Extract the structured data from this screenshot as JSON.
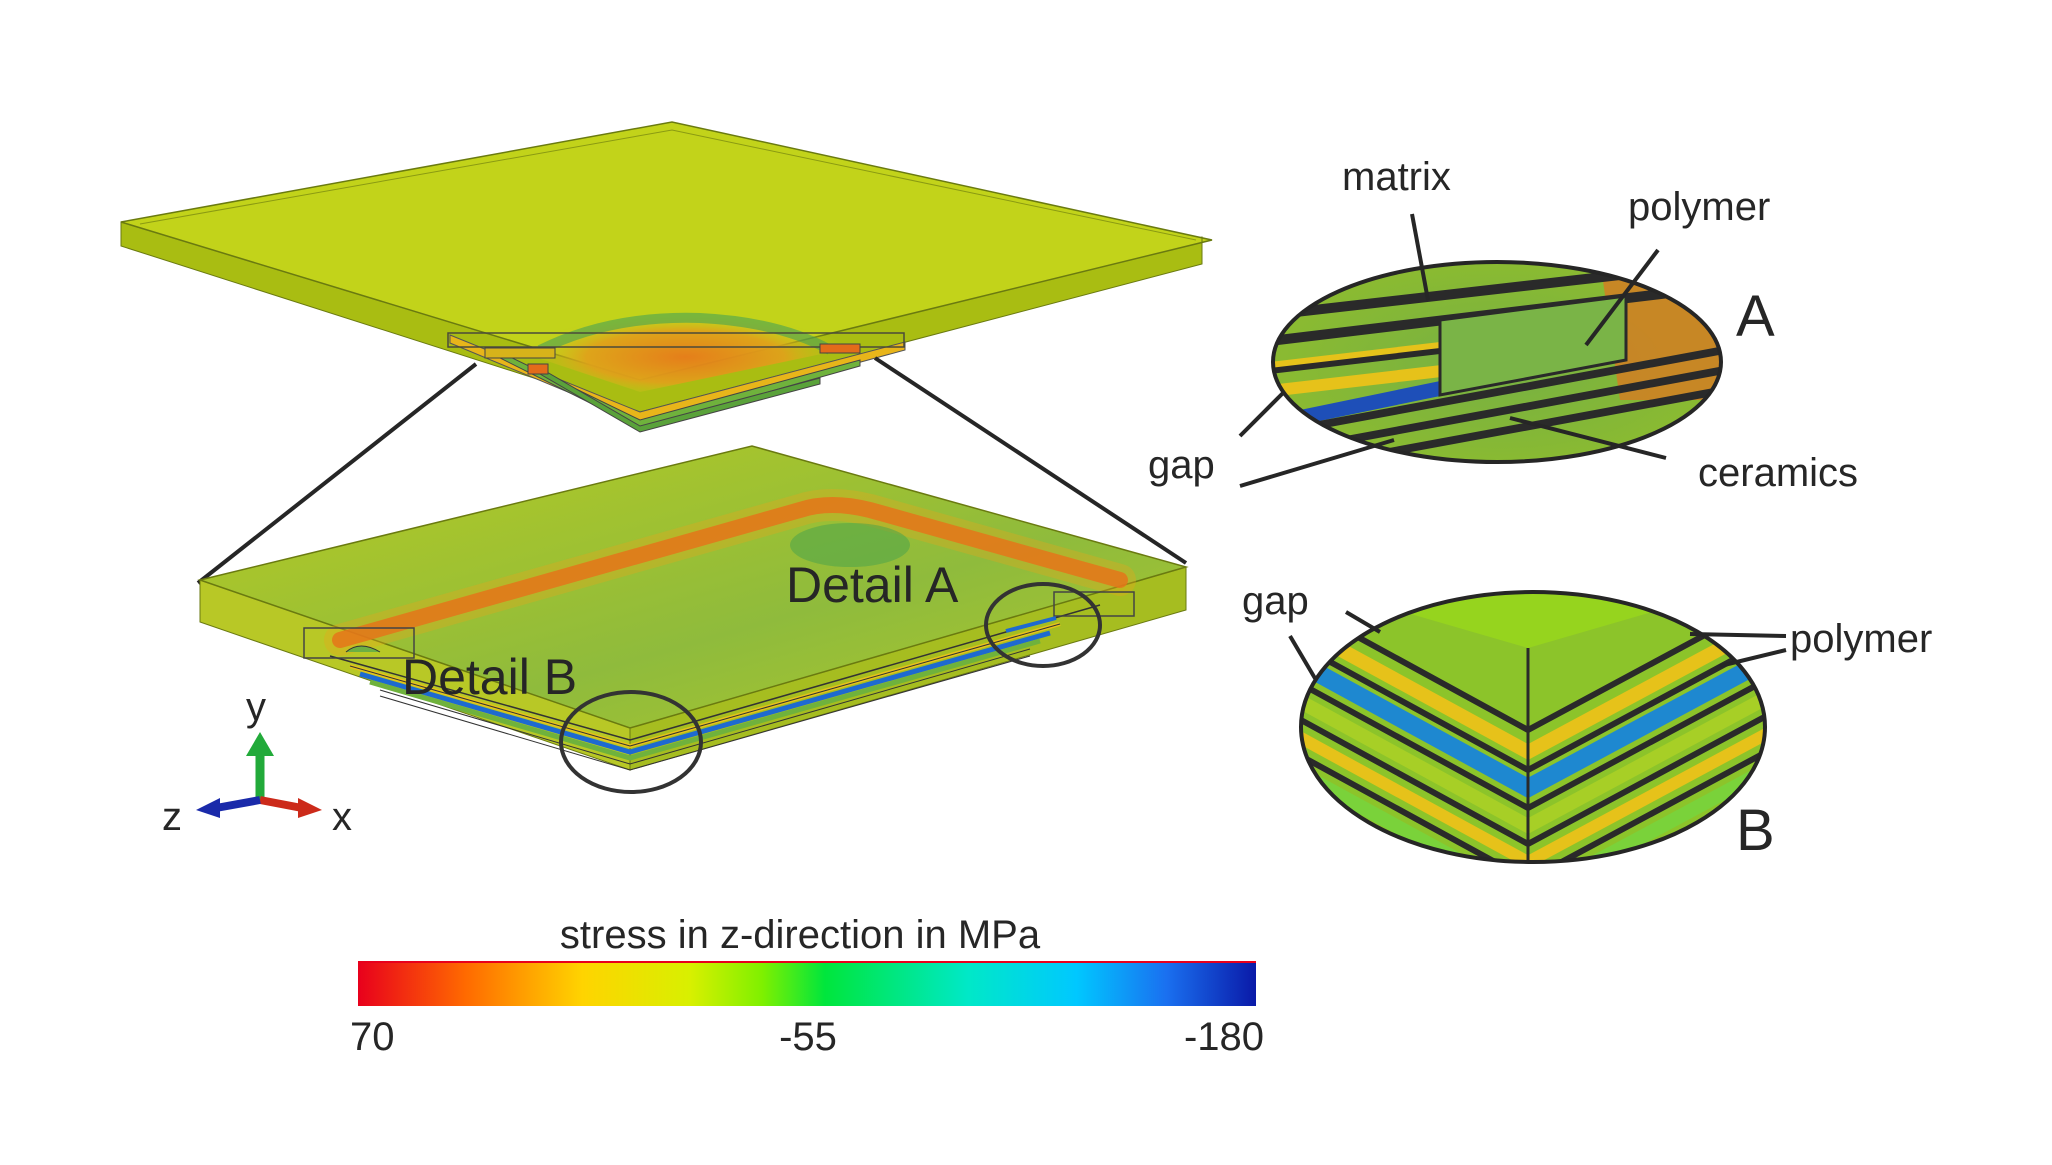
{
  "labels": {
    "detail_a": "Detail A",
    "detail_b": "Detail B",
    "matrix": "matrix",
    "polymer_a": "polymer",
    "gap_a": "gap",
    "ceramics": "ceramics",
    "letter_a": "A",
    "gap_b": "gap",
    "polymer_b": "polymer",
    "letter_b": "B"
  },
  "axes": {
    "y": "y",
    "x": "x",
    "z": "z"
  },
  "colorbar": {
    "title": "stress in z-direction in MPa",
    "ticks": [
      "70",
      "-55",
      "-180"
    ],
    "gradient_stops": [
      "#e8001c",
      "#ff6a00",
      "#ffd400",
      "#d8f000",
      "#7ff000",
      "#00e63c",
      "#00e8c8",
      "#00c8ff",
      "#1a70f0",
      "#0a1aa8"
    ]
  },
  "colors": {
    "plate_top": "#c2d31a",
    "plate_edge": "#a8bc10",
    "stress_high": "#e3611a",
    "stress_mid": "#8cbb3e",
    "ceramics_blue": "#1e6ad0",
    "outline": "#262626"
  }
}
